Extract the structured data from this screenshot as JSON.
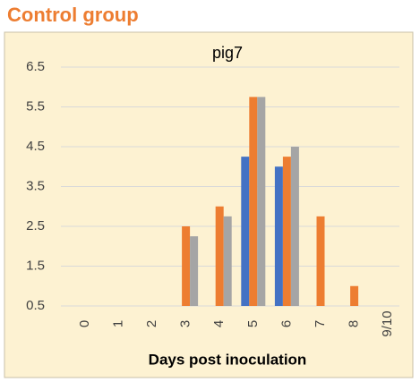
{
  "chart_data": {
    "type": "bar",
    "header": "Control group",
    "title": "pig7",
    "x_label": "Days post inoculation",
    "categories": [
      "0",
      "1",
      "2",
      "3",
      "4",
      "5",
      "6",
      "7",
      "8",
      "9/10"
    ],
    "series": [
      {
        "color": "#4472c4",
        "values": [
          null,
          null,
          null,
          null,
          null,
          4.25,
          4,
          null,
          null,
          null
        ]
      },
      {
        "color": "#ed7d31",
        "values": [
          null,
          null,
          null,
          2.5,
          3,
          5.75,
          4.25,
          2.75,
          1,
          null
        ]
      },
      {
        "color": "#a5a5a5",
        "values": [
          null,
          null,
          null,
          2.25,
          2.75,
          5.75,
          4.5,
          null,
          null,
          null
        ]
      }
    ],
    "ylim": [
      0.5,
      6.5
    ],
    "yticks": [
      0.5,
      1.5,
      2.5,
      3.5,
      4.5,
      5.5,
      6.5
    ],
    "grid": true
  }
}
